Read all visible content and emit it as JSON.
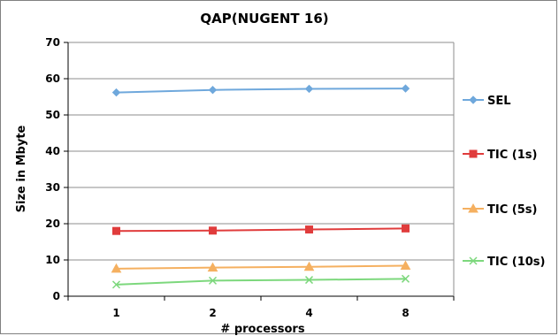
{
  "chart_data": {
    "type": "line",
    "title": "QAP(NUGENT 16)",
    "xlabel": "# processors",
    "ylabel": "Size in Mbyte",
    "categories": [
      "1",
      "2",
      "4",
      "8"
    ],
    "ylim": [
      0,
      70
    ],
    "yticks": [
      0,
      10,
      20,
      30,
      40,
      50,
      60,
      70
    ],
    "grid": true,
    "legend_position": "right",
    "series": [
      {
        "name": "SEL",
        "values": [
          56.2,
          56.9,
          57.2,
          57.3
        ],
        "color": "#6FA8DC",
        "marker": "diamond"
      },
      {
        "name": "TIC (1s)",
        "values": [
          18.0,
          18.1,
          18.4,
          18.7
        ],
        "color": "#E03C3C",
        "marker": "square"
      },
      {
        "name": "TIC (5s)",
        "values": [
          7.6,
          7.9,
          8.1,
          8.4
        ],
        "color": "#F5B060",
        "marker": "triangle"
      },
      {
        "name": "TIC (10s)",
        "values": [
          3.2,
          4.3,
          4.5,
          4.8
        ],
        "color": "#7DD87D",
        "marker": "x"
      }
    ]
  }
}
